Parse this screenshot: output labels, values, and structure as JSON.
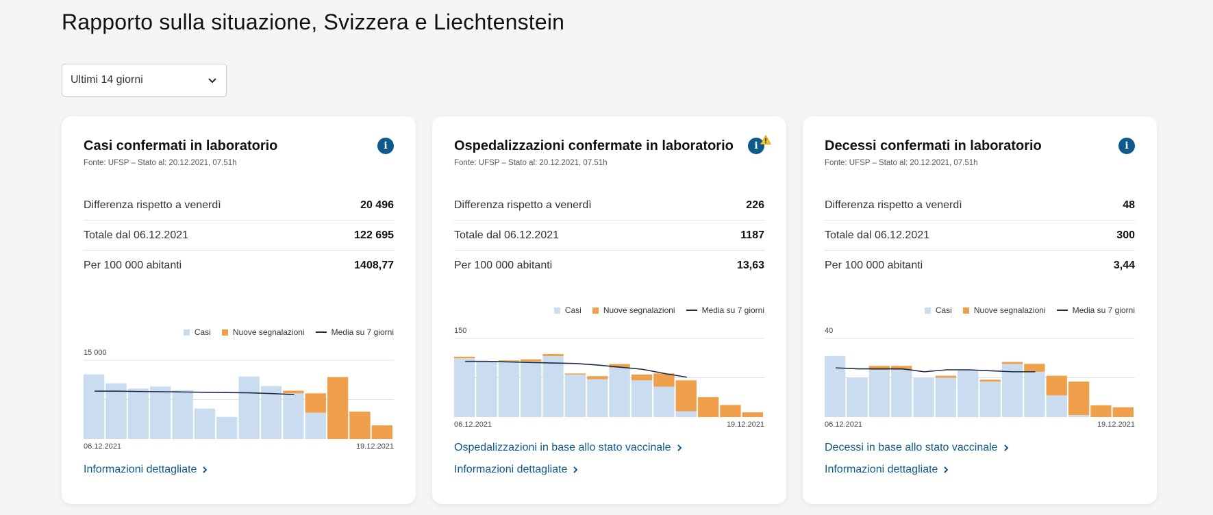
{
  "page": {
    "title": "Rapporto sulla situazione, Svizzera e Liechtenstein",
    "period_select": "Ultimi 14 giorni"
  },
  "colors": {
    "cases": "#c9dcf0",
    "new_reports": "#f0a04b",
    "avg": "#1a2a47",
    "accent": "#0f5a8c",
    "warn": "#f2c230"
  },
  "legend": {
    "cases": "Casi",
    "new_reports": "Nuove segnalazioni",
    "avg": "Media su 7 giorni"
  },
  "cards": [
    {
      "title": "Casi confermati in laboratorio",
      "source": "Fonte: UFSP – Stato al: 20.12.2021, 07.51h",
      "stats": [
        {
          "label": "Differenza rispetto a venerdì",
          "value": "20 496"
        },
        {
          "label": "Totale dal 06.12.2021",
          "value": "122 695"
        },
        {
          "label": "Per 100 000 abitanti",
          "value": "1408,77"
        }
      ],
      "links": [
        "Informazioni dettagliate"
      ]
    },
    {
      "title": "Ospedalizzazioni confermate in laboratorio",
      "source": "Fonte: UFSP – Stato al: 20.12.2021, 07.51h",
      "stats": [
        {
          "label": "Differenza rispetto a venerdì",
          "value": "226"
        },
        {
          "label": "Totale dal 06.12.2021",
          "value": "1187"
        },
        {
          "label": "Per 100 000 abitanti",
          "value": "13,63"
        }
      ],
      "links": [
        "Ospedalizzazioni in base allo stato vaccinale",
        "Informazioni dettagliate"
      ]
    },
    {
      "title": "Decessi confermati in laboratorio",
      "source": "Fonte: UFSP – Stato al: 20.12.2021, 07.51h",
      "stats": [
        {
          "label": "Differenza rispetto a venerdì",
          "value": "48"
        },
        {
          "label": "Totale dal 06.12.2021",
          "value": "300"
        },
        {
          "label": "Per 100 000 abitanti",
          "value": "3,44"
        }
      ],
      "links": [
        "Decessi in base allo stato vaccinale",
        "Informazioni dettagliate"
      ]
    }
  ],
  "chart_data": [
    {
      "type": "bar",
      "x_start": "06.12.2021",
      "x_end": "19.12.2021",
      "ymax_label": "15 000",
      "ylim": [
        0,
        15000
      ],
      "gridlines": [
        15000,
        7500
      ],
      "series": [
        {
          "name": "Casi",
          "values": [
            12300,
            10600,
            9600,
            10000,
            9300,
            5800,
            4200,
            11900,
            10100,
            8700,
            5000,
            0,
            0,
            0
          ]
        },
        {
          "name": "Nuove segnalazioni",
          "values": [
            0,
            0,
            0,
            0,
            0,
            0,
            0,
            0,
            0,
            500,
            3700,
            11800,
            5200,
            2600
          ]
        },
        {
          "name": "Media su 7 giorni",
          "values": [
            null,
            null,
            null,
            null,
            null,
            null,
            null,
            null,
            null,
            null,
            null,
            null,
            null,
            null
          ]
        }
      ],
      "avg": [
        9100,
        9100,
        9050,
        9000,
        8950,
        8900,
        8850,
        8800,
        8650,
        8450
      ],
      "avg_start": 0
    },
    {
      "type": "bar",
      "x_start": "06.12.2021",
      "x_end": "19.12.2021",
      "ymax_label": "150",
      "ylim": [
        0,
        150
      ],
      "gridlines": [
        150,
        75
      ],
      "series": [
        {
          "name": "Casi",
          "values": [
            112,
            106,
            106,
            106,
            116,
            81,
            72,
            94,
            70,
            58,
            11,
            0,
            0,
            0
          ]
        },
        {
          "name": "Nuove segnalazioni",
          "values": [
            3,
            0,
            2,
            4,
            4,
            2,
            6,
            7,
            11,
            25,
            59,
            38,
            23,
            9
          ]
        }
      ],
      "avg": [
        106,
        106,
        105,
        104,
        103,
        102,
        99,
        95,
        91,
        83,
        76
      ],
      "avg_start": 0
    },
    {
      "type": "bar",
      "x_start": "06.12.2021",
      "x_end": "19.12.2021",
      "ymax_label": "40",
      "ylim": [
        0,
        40
      ],
      "gridlines": [
        40,
        20
      ],
      "series": [
        {
          "name": "Casi",
          "values": [
            31,
            20,
            24,
            24,
            20,
            20,
            24,
            18,
            27,
            23,
            11,
            1,
            0,
            0
          ]
        },
        {
          "name": "Nuove segnalazioni",
          "values": [
            0,
            0,
            2,
            2,
            0,
            1,
            0,
            1,
            1,
            4,
            10,
            17,
            6,
            5
          ]
        }
      ],
      "avg": [
        25,
        24.5,
        24.5,
        24.5,
        23,
        24,
        24,
        23.5,
        23,
        23
      ],
      "avg_start": 0
    }
  ]
}
